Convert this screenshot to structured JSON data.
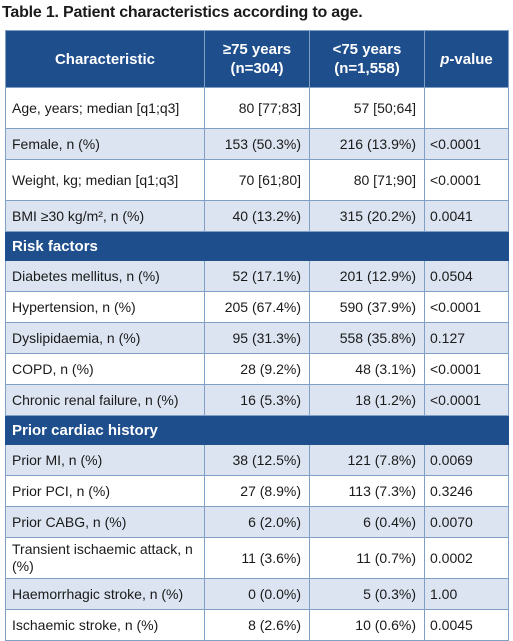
{
  "caption": "Table 1. Patient characteristics according to age.",
  "headers": {
    "characteristic": "Characteristic",
    "old_group_line1": "≥75 years",
    "old_group_line2": "(n=304)",
    "young_group_line1": "<75 years",
    "young_group_line2": "(n=1,558)",
    "pvalue_p": "p",
    "pvalue_rest": "-value"
  },
  "rows_demographics": [
    {
      "label": "Age, years; median [q1;q3]",
      "old": "80 [77;83]",
      "young": "57 [50;64]",
      "p": ""
    },
    {
      "label": "Female, n (%)",
      "old": "153 (50.3%)",
      "young": "216 (13.9%)",
      "p": "<0.0001"
    },
    {
      "label": "Weight, kg; median [q1;q3]",
      "old": "70 [61;80]",
      "young": "80 [71;90]",
      "p": "<0.0001"
    },
    {
      "label": "BMI ≥30 kg/m², n (%)",
      "old": "40 (13.2%)",
      "young": "315 (20.2%)",
      "p": "0.0041"
    }
  ],
  "section_risk": "Risk factors",
  "rows_risk": [
    {
      "label": "Diabetes mellitus, n (%)",
      "old": "52 (17.1%)",
      "young": "201 (12.9%)",
      "p": "0.0504"
    },
    {
      "label": "Hypertension, n (%)",
      "old": "205 (67.4%)",
      "young": "590 (37.9%)",
      "p": "<0.0001"
    },
    {
      "label": "Dyslipidaemia, n (%)",
      "old": "95 (31.3%)",
      "young": "558 (35.8%)",
      "p": "0.127"
    },
    {
      "label": "COPD, n (%)",
      "old": "28 (9.2%)",
      "young": "48 (3.1%)",
      "p": "<0.0001"
    },
    {
      "label": "Chronic renal failure, n (%)",
      "old": "16 (5.3%)",
      "young": "18 (1.2%)",
      "p": "<0.0001"
    }
  ],
  "section_cardiac": "Prior cardiac history",
  "rows_cardiac": [
    {
      "label": "Prior MI, n (%)",
      "old": "38 (12.5%)",
      "young": "121 (7.8%)",
      "p": "0.0069"
    },
    {
      "label": "Prior PCI, n (%)",
      "old": "27 (8.9%)",
      "young": "113 (7.3%)",
      "p": "0.3246"
    },
    {
      "label": "Prior CABG, n (%)",
      "old": "6 (2.0%)",
      "young": "6 (0.4%)",
      "p": "0.0070"
    },
    {
      "label": "Transient ischaemic attack, n (%)",
      "old": "11 (3.6%)",
      "young": "11 (0.7%)",
      "p": "0.0002"
    },
    {
      "label": "Haemorrhagic stroke, n (%)",
      "old": "0 (0.0%)",
      "young": "5 (0.3%)",
      "p": "1.00"
    },
    {
      "label": "Ischaemic stroke, n (%)",
      "old": "8 (2.6%)",
      "young": "10 (0.6%)",
      "p": "0.0045"
    }
  ]
}
